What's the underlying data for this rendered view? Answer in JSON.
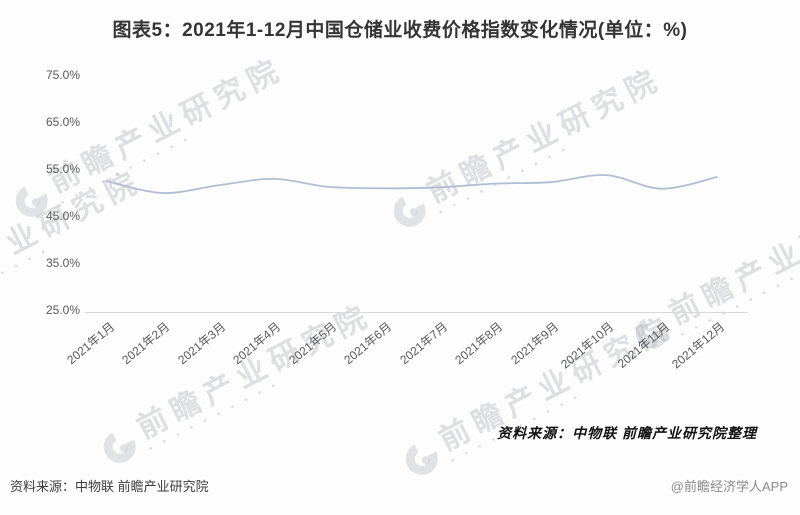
{
  "title": "图表5：2021年1-12月中国仓储业收费价格指数变化情况(单位：%)",
  "chart_data": {
    "type": "line",
    "title": "2021年1-12月中国仓储业收费价格指数变化情况",
    "unit": "%",
    "x": [
      "2021年1月",
      "2021年2月",
      "2021年3月",
      "2021年4月",
      "2021年5月",
      "2021年6月",
      "2021年7月",
      "2021年8月",
      "2021年9月",
      "2021年10月",
      "2021年11月",
      "2021年12月"
    ],
    "series": [
      {
        "name": "仓储业收费价格指数",
        "values": [
          52.4,
          49.9,
          51.5,
          52.9,
          51.2,
          50.9,
          51.1,
          51.9,
          52.2,
          53.7,
          50.8,
          53.3
        ]
      }
    ],
    "ylim": [
      25,
      75
    ],
    "ytick_values": [
      75,
      65,
      55,
      45,
      35,
      25
    ],
    "ytick_labels": [
      "75.0%",
      "65.0%",
      "55.0%",
      "45.0%",
      "35.0%",
      "25.0%"
    ],
    "grid": false,
    "legend": false,
    "line_color": "#aebfd4",
    "axis_line_color": "#d9d9d9"
  },
  "source_note": "资料来源：中物联  前瞻产业研究院整理",
  "footer": {
    "source": "资料来源：中物联 前瞻产业研究院",
    "credit": "@前瞻经济学人APP"
  },
  "watermark": {
    "text": "前瞻产业研究院",
    "dots": "● ● ● ● ● ● ● ● ● ●"
  }
}
